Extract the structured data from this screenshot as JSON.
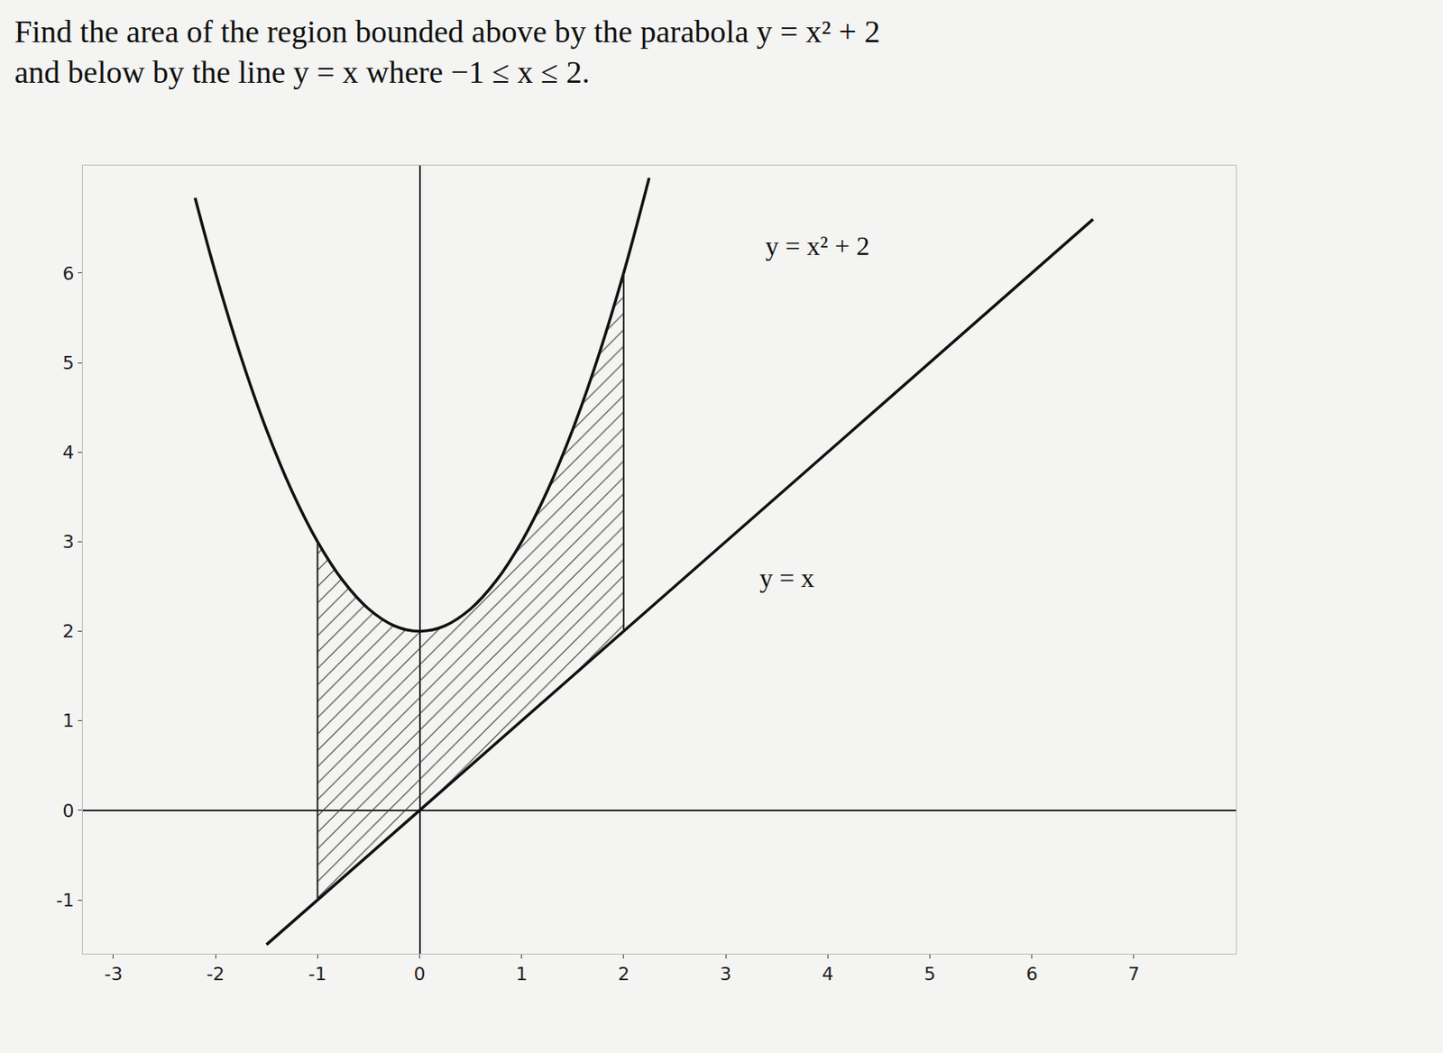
{
  "chart_data": {
    "type": "line",
    "title": "Find the area of the region bounded above by the parabola y = x² + 2\nand below by the line y = x where −1 ≤ x ≤ 2.",
    "series": [
      {
        "name": "y = x² + 2",
        "color": "#111111",
        "x": [
          -2.2,
          -2,
          -1.75,
          -1.5,
          -1.25,
          -1,
          -0.75,
          -0.5,
          -0.25,
          0,
          0.25,
          0.5,
          0.75,
          1,
          1.25,
          1.5,
          1.75,
          2,
          2.25
        ],
        "values": [
          6.84,
          6,
          5.0625,
          4.25,
          3.5625,
          3,
          2.5625,
          2.25,
          2.0625,
          2,
          2.0625,
          2.25,
          2.5625,
          3,
          3.5625,
          4.25,
          5.0625,
          6,
          7.0625
        ]
      },
      {
        "name": "y = x",
        "color": "#111111",
        "x": [
          -1.5,
          -1,
          2,
          6.6
        ],
        "values": [
          -1.5,
          -1,
          2,
          6.6
        ]
      }
    ],
    "shade": [
      -1,
      2
    ],
    "annotations": [
      {
        "text": "y = x² + 2",
        "x": 3.9,
        "y": 6.3
      },
      {
        "text": "y = x",
        "x": 3.6,
        "y": 2.6
      }
    ],
    "xlim": [
      -3.3,
      8
    ],
    "ylim": [
      -1.6,
      7.2
    ],
    "xticks": [
      -3,
      -2,
      -1,
      0,
      1,
      2,
      3,
      4,
      5,
      6,
      7
    ],
    "yticks": [
      -1,
      0,
      1,
      2,
      3,
      4,
      5,
      6
    ],
    "grid": false
  }
}
